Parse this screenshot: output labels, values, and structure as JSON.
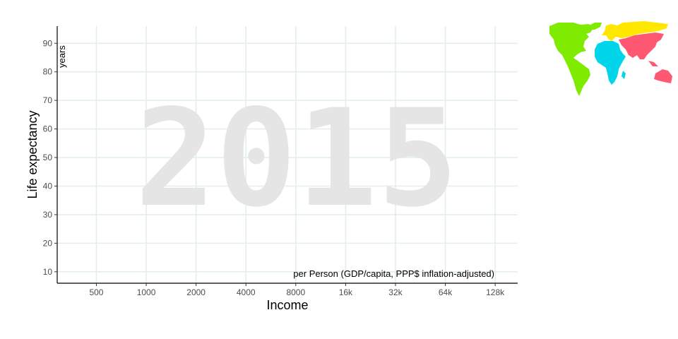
{
  "chart_data": {
    "type": "scatter",
    "title": "",
    "year": "2015",
    "xlabel": "Income",
    "xunit": "per Person (GDP/capita, PPP$ inflation-adjusted)",
    "ylabel": "Life expectancy",
    "yunit": "years",
    "x_scale": "log2",
    "x_ticks": [
      500,
      1000,
      2000,
      4000,
      8000,
      16000,
      32000,
      64000,
      128000
    ],
    "x_tick_labels": [
      "500",
      "1000",
      "2000",
      "4000",
      "8000",
      "16k",
      "32k",
      "64k",
      "128k"
    ],
    "xlim": [
      290,
      175000
    ],
    "y_ticks": [
      10,
      20,
      30,
      40,
      50,
      60,
      70,
      80,
      90
    ],
    "y_tick_labels": [
      "10",
      "20",
      "30",
      "40",
      "50",
      "60",
      "70",
      "80",
      "90"
    ],
    "ylim": [
      6,
      96
    ],
    "grid": true,
    "series": [],
    "legend": {
      "type": "world-region-map",
      "placement": "top-right",
      "regions": [
        {
          "region": "americas",
          "color": "#7feb00"
        },
        {
          "region": "europe",
          "color": "#ffe700"
        },
        {
          "region": "africa",
          "color": "#00d5e9"
        },
        {
          "region": "asia",
          "color": "#ff5872"
        }
      ]
    }
  }
}
